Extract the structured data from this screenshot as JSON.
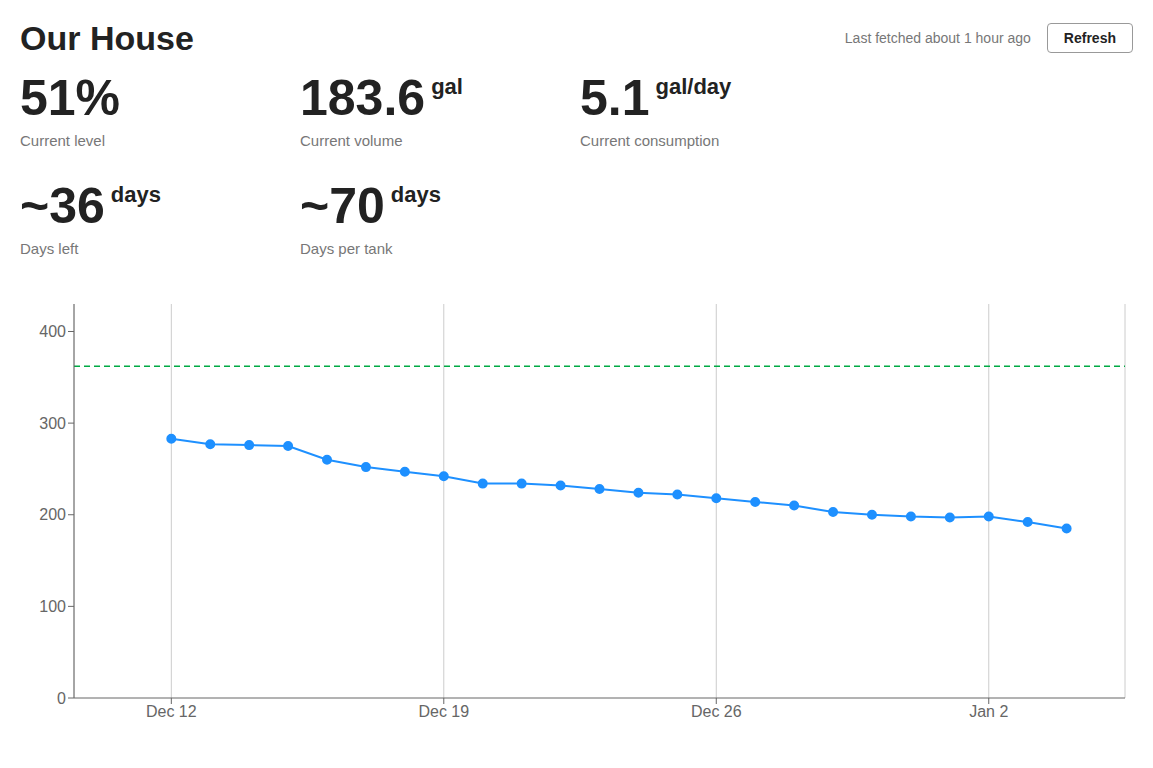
{
  "chart_data": {
    "type": "line",
    "title": "Our House",
    "annotations": {
      "header": "Last fetched about 1 hour ago",
      "button": "Refresh",
      "metrics": [
        [
          {
            "big": "51%",
            "label": "Current level"
          },
          {
            "big": "183.6",
            "suffix": "gal",
            "label": "Current volume"
          },
          {
            "big": "5.1",
            "suffix": "gal/day",
            "label": "Current consumption"
          }
        ],
        [
          {
            "big": "~36",
            "suffix": "days",
            "label": "Days left"
          },
          {
            "big": "~70",
            "suffix": "days",
            "label": "Days per tank"
          }
        ]
      ]
    },
    "x": [
      2,
      3,
      4,
      5,
      6,
      7,
      8,
      9,
      10,
      11,
      12,
      13,
      14,
      15,
      16,
      17,
      18,
      19,
      20,
      21,
      22,
      23,
      24,
      25
    ],
    "values": [
      283,
      277,
      276,
      275,
      260,
      252,
      247,
      242,
      234,
      234,
      232,
      228,
      224,
      222,
      218,
      214,
      210,
      203,
      200,
      198,
      197,
      198,
      192,
      185
    ],
    "color": "#1e90ff",
    "marker": "circle",
    "reference_line": {
      "value": 362,
      "color": "#00aa44",
      "line_style": "dashed"
    },
    "xlim": [
      -0.5,
      26.5
    ],
    "xticks": [
      {
        "value": 2,
        "label": "Dec 12"
      },
      {
        "value": 9,
        "label": "Dec 19"
      },
      {
        "value": 16,
        "label": "Dec 26"
      },
      {
        "value": 23,
        "label": "Jan 2"
      }
    ],
    "ylim": [
      0,
      430
    ],
    "yticks": [
      0,
      100,
      200,
      300,
      400
    ],
    "grid": "x"
  }
}
